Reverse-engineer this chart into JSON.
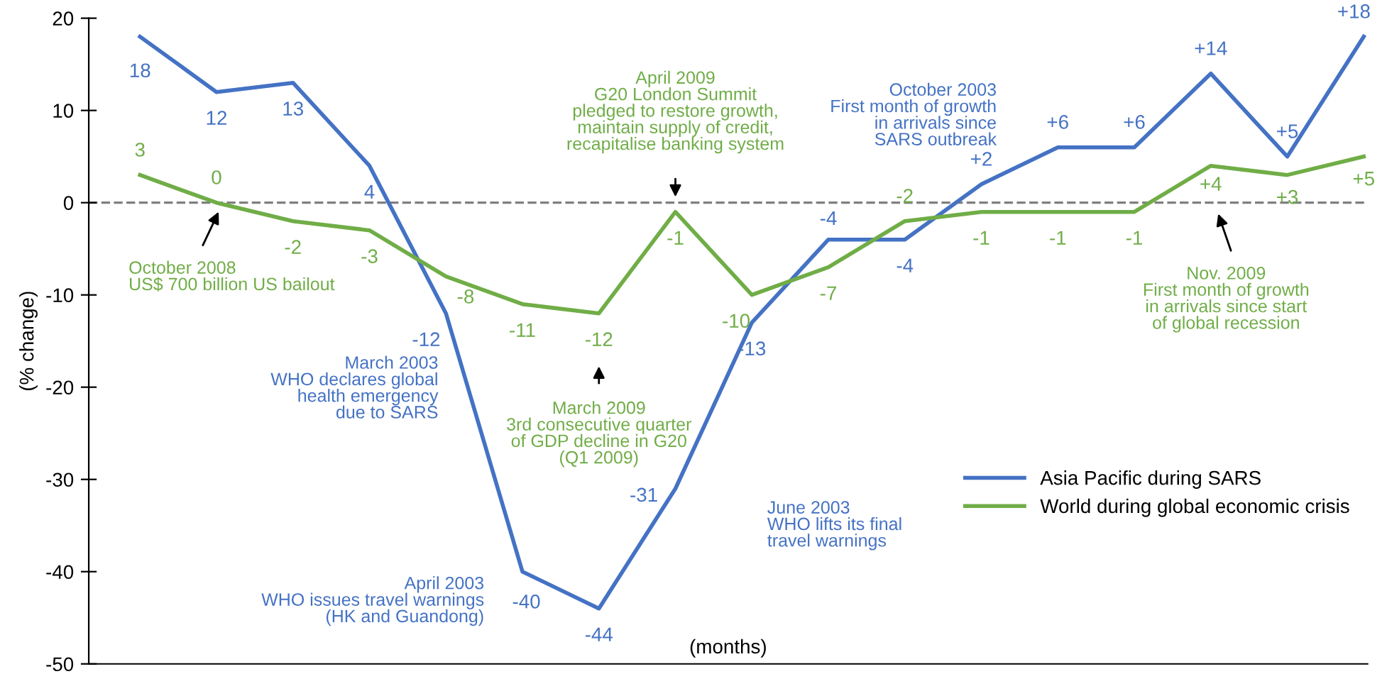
{
  "chart_data": {
    "type": "line",
    "ylabel": "(% change)",
    "xlabel": "(months)",
    "categories": [
      null,
      null,
      null,
      null,
      null,
      null,
      null,
      null,
      null,
      null,
      null,
      null,
      null,
      null,
      null,
      null,
      null
    ],
    "series": [
      {
        "name": "Asia Pacific during SARS",
        "color": "#4472c4",
        "values": [
          18,
          12,
          13,
          4,
          -12,
          -40,
          -44,
          -31,
          -13,
          -4,
          -4,
          2,
          6,
          6,
          14,
          5,
          18
        ],
        "value_labels": [
          "18",
          "12",
          "13",
          "4",
          "-12",
          "-40",
          "-44",
          "-31",
          "-13",
          "-4",
          "-4",
          "+2",
          "+6",
          "+6",
          "+14",
          "+5",
          "+18"
        ]
      },
      {
        "name": "World during global economic crisis",
        "color": "#70ad47",
        "values": [
          3,
          0,
          -2,
          -3,
          -8,
          -11,
          -12,
          -1,
          -10,
          -7,
          -2,
          -1,
          -1,
          -1,
          4,
          3,
          5
        ],
        "value_labels": [
          "3",
          "0",
          "-2",
          "-3",
          "-8",
          "-11",
          "-12",
          "-1",
          "-10",
          "-7",
          "-2",
          "-1",
          "-1",
          "-1",
          "+4",
          "+3",
          "+5"
        ]
      }
    ],
    "ylim": [
      -50,
      20
    ],
    "yticks": [
      -50,
      -40,
      -30,
      -20,
      -10,
      0,
      10,
      20
    ],
    "ref_lines": [
      {
        "axis": "y",
        "value": 0,
        "color": "#7f7f7f",
        "line_style": "dashed"
      }
    ],
    "annotations": [
      "October 2008\nUS$ 700 billion US bailout",
      "March 2003\nWHO declares global\nhealth emergency\ndue to SARS",
      "April 2003\nWHO issues travel warnings\n(HK and Guandong)",
      "March 2009\n3rd consecutive quarter\nof GDP decline in G20\n(Q1 2009)",
      "April 2009\nG20 London Summit\npledged to restore growth,\nmaintain supply of credit,\nrecapitalise banking system",
      "June 2003\nWHO lifts its final\ntravel warnings",
      "October 2003\nFirst month of growth\nin arrivals since\nSARS outbreak",
      "Nov. 2009\nFirst month of growth\nin arrivals since start\nof global recession"
    ],
    "grid": false,
    "legend": "bottom right",
    "marker": "none",
    "line_style": "solid",
    "tick_labels": "y"
  }
}
